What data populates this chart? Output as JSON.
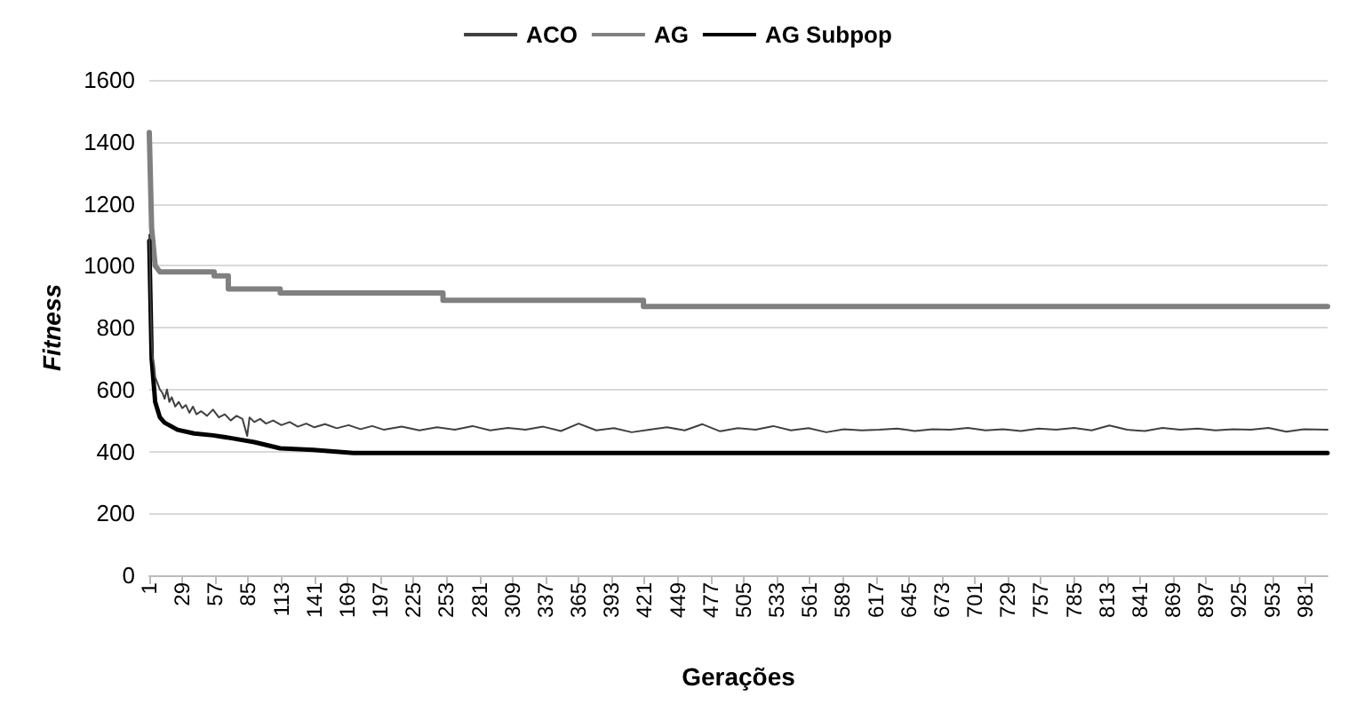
{
  "chart_data": {
    "type": "line",
    "xlabel": "Gerações",
    "ylabel": "Fitness",
    "xlim": [
      1,
      1000
    ],
    "xticks": [
      1,
      29,
      57,
      85,
      113,
      141,
      169,
      197,
      225,
      253,
      281,
      309,
      337,
      365,
      393,
      421,
      449,
      477,
      505,
      533,
      561,
      589,
      617,
      645,
      673,
      701,
      729,
      757,
      785,
      813,
      841,
      869,
      897,
      925,
      953,
      981
    ],
    "ylim": [
      0,
      1600
    ],
    "yticks": [
      0,
      200,
      400,
      600,
      800,
      1000,
      1200,
      1400,
      1600
    ],
    "grid": "y",
    "legend": "top",
    "marker": "none",
    "line_style": "solid",
    "series": [
      {
        "name": "ACO",
        "color": "#404040",
        "x": [
          1,
          2,
          3,
          4,
          5,
          6,
          8,
          10,
          12,
          14,
          16,
          18,
          20,
          23,
          26,
          29,
          32,
          35,
          38,
          41,
          45,
          50,
          55,
          60,
          65,
          70,
          75,
          80,
          84,
          86,
          90,
          95,
          100,
          106,
          113,
          120,
          127,
          134,
          141,
          150,
          160,
          170,
          180,
          190,
          200,
          215,
          230,
          245,
          260,
          275,
          290,
          305,
          320,
          335,
          350,
          365,
          380,
          395,
          410,
          425,
          440,
          455,
          470,
          485,
          500,
          515,
          530,
          545,
          560,
          575,
          590,
          605,
          620,
          635,
          650,
          665,
          680,
          695,
          710,
          725,
          740,
          755,
          770,
          785,
          800,
          815,
          830,
          845,
          860,
          875,
          890,
          905,
          920,
          935,
          950,
          965,
          980,
          1000
        ],
        "values": [
          1100,
          900,
          760,
          700,
          680,
          640,
          620,
          600,
          590,
          570,
          600,
          560,
          575,
          545,
          560,
          540,
          550,
          525,
          545,
          520,
          530,
          515,
          535,
          510,
          520,
          500,
          515,
          505,
          450,
          510,
          495,
          505,
          490,
          500,
          485,
          495,
          480,
          490,
          478,
          488,
          475,
          485,
          472,
          482,
          470,
          480,
          468,
          478,
          470,
          482,
          468,
          476,
          470,
          480,
          466,
          490,
          468,
          475,
          462,
          470,
          478,
          468,
          488,
          465,
          475,
          470,
          482,
          468,
          475,
          462,
          472,
          468,
          470,
          474,
          466,
          472,
          470,
          476,
          468,
          472,
          466,
          474,
          470,
          476,
          468,
          484,
          470,
          466,
          476,
          470,
          474,
          468,
          472,
          470,
          476,
          464,
          472,
          470
        ]
      },
      {
        "name": "AG",
        "color": "#808080",
        "x": [
          1,
          3,
          6,
          10,
          56,
          56,
          68,
          68,
          112,
          112,
          250,
          250,
          420,
          420,
          1000
        ],
        "values": [
          1430,
          1120,
          1000,
          980,
          980,
          967,
          967,
          925,
          925,
          912,
          912,
          888,
          888,
          868,
          868
        ]
      },
      {
        "name": "AG Subpop",
        "color": "#000000",
        "x": [
          1,
          3,
          6,
          10,
          14,
          25,
          39,
          55,
          72,
          90,
          112,
          140,
          174,
          250,
          1000
        ],
        "values": [
          1080,
          700,
          560,
          510,
          493,
          470,
          458,
          452,
          442,
          430,
          410,
          405,
          395,
          395,
          395
        ]
      }
    ]
  }
}
